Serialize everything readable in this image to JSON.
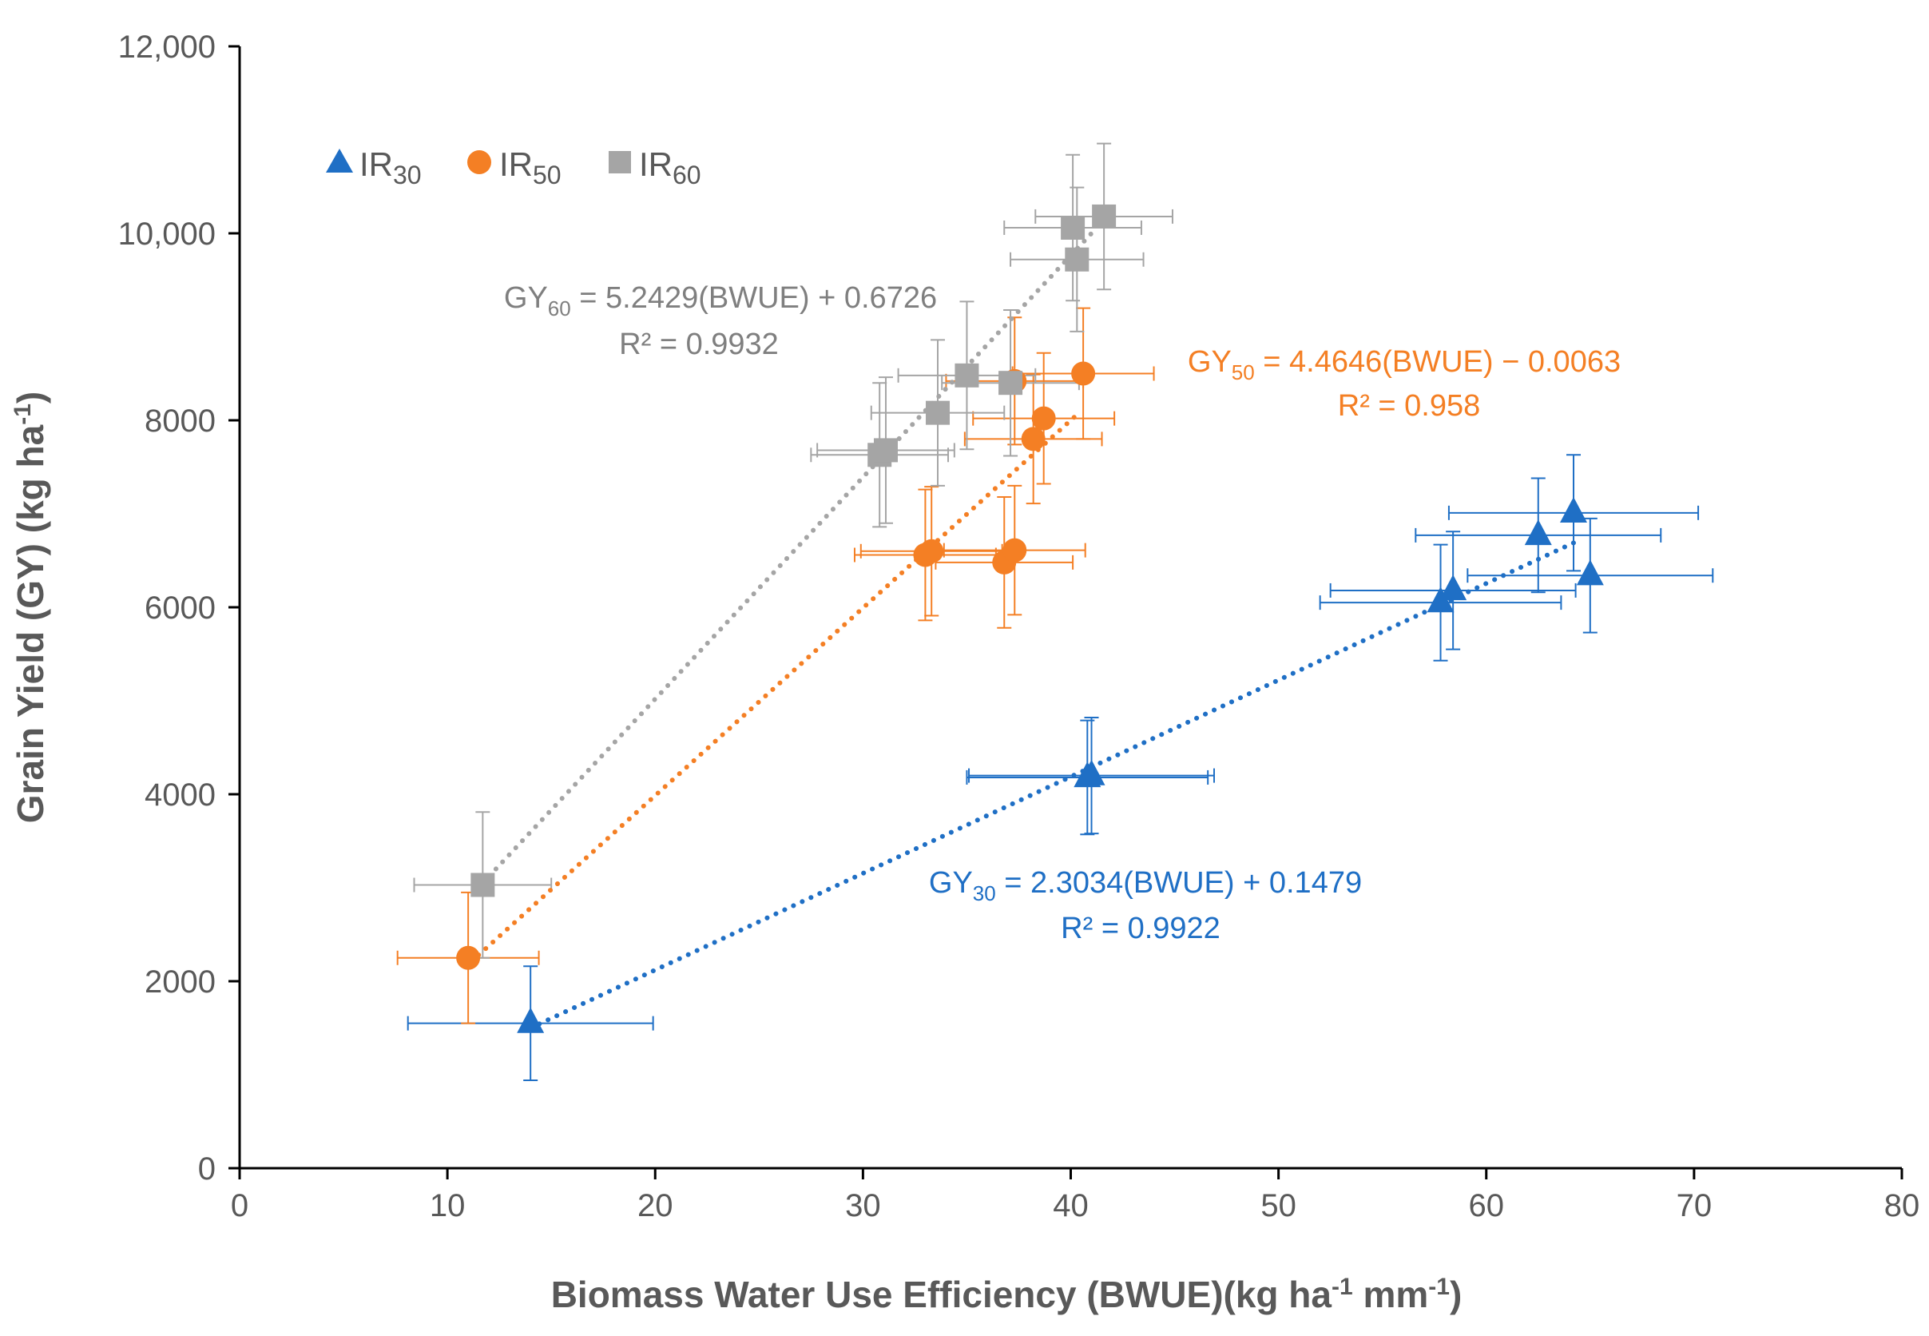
{
  "chart_data": {
    "type": "scatter",
    "title": "",
    "xlabel": "Biomass Water Use Efficiency (BWUE)(kg ha",
    "xlabel_sup1": "-1",
    "xlabel_mid": " mm",
    "xlabel_sup2": "-1",
    "xlabel_end": ")",
    "ylabel": "Grain Yield (GY) (kg ha",
    "ylabel_sup": "-1",
    "ylabel_end": ")",
    "xlim": [
      0,
      80
    ],
    "ylim": [
      0,
      12000
    ],
    "x_ticks": [
      0,
      10,
      20,
      30,
      40,
      50,
      60,
      70,
      80
    ],
    "x_tick_labels": [
      "0",
      "10",
      "20",
      "30",
      "40",
      "50",
      "60",
      "70",
      "80"
    ],
    "y_ticks": [
      0,
      2000,
      4000,
      6000,
      8000,
      10000,
      12000
    ],
    "y_tick_labels": [
      "0",
      "2000",
      "4000",
      "6000",
      "8000",
      "10,000",
      "12,000"
    ],
    "grid": false,
    "legend_position": "top-left",
    "series": [
      {
        "name": "IR",
        "sub": "30",
        "marker": "triangle",
        "color": "#1F6FC5",
        "points": [
          {
            "x": 14.0,
            "y": 1550,
            "xerr": 5.9,
            "yerr": 610
          },
          {
            "x": 40.8,
            "y": 4180,
            "xerr": 5.8,
            "yerr": 610
          },
          {
            "x": 41.0,
            "y": 4200,
            "xerr": 5.9,
            "yerr": 620
          },
          {
            "x": 57.8,
            "y": 6050,
            "xerr": 5.8,
            "yerr": 620
          },
          {
            "x": 58.4,
            "y": 6180,
            "xerr": 5.9,
            "yerr": 630
          },
          {
            "x": 62.5,
            "y": 6770,
            "xerr": 5.9,
            "yerr": 610
          },
          {
            "x": 64.2,
            "y": 7010,
            "xerr": 6.0,
            "yerr": 620
          },
          {
            "x": 65.0,
            "y": 6340,
            "xerr": 5.9,
            "yerr": 610
          }
        ],
        "trendline": {
          "x": [
            14.0,
            64.5
          ],
          "y": [
            1500,
            6720
          ]
        },
        "equation": {
          "prefix": "GY",
          "sub": "30",
          "text": " = 2.3034(BWUE) + 0.1479",
          "r2": "R² = 0.9922"
        }
      },
      {
        "name": "IR",
        "sub": "50",
        "marker": "circle",
        "color": "#F47F24",
        "points": [
          {
            "x": 11.0,
            "y": 2250,
            "xerr": 3.4,
            "yerr": 700
          },
          {
            "x": 33.0,
            "y": 6560,
            "xerr": 3.4,
            "yerr": 700
          },
          {
            "x": 33.3,
            "y": 6600,
            "xerr": 3.4,
            "yerr": 690
          },
          {
            "x": 36.8,
            "y": 6480,
            "xerr": 3.3,
            "yerr": 700
          },
          {
            "x": 37.3,
            "y": 6610,
            "xerr": 3.4,
            "yerr": 690
          },
          {
            "x": 38.2,
            "y": 7800,
            "xerr": 3.3,
            "yerr": 690
          },
          {
            "x": 38.7,
            "y": 8020,
            "xerr": 3.4,
            "yerr": 700
          },
          {
            "x": 37.3,
            "y": 8420,
            "xerr": 3.3,
            "yerr": 680
          },
          {
            "x": 40.6,
            "y": 8500,
            "xerr": 3.4,
            "yerr": 700
          }
        ],
        "trendline": {
          "x": [
            11.5,
            40.5
          ],
          "y": [
            2280,
            8100
          ]
        },
        "equation": {
          "prefix": "GY",
          "sub": "50",
          "text": " = 4.4646(BWUE) − 0.0063",
          "r2": "R² = 0.958"
        }
      },
      {
        "name": "IR",
        "sub": "60",
        "marker": "square",
        "color": "#A5A5A5",
        "points": [
          {
            "x": 11.7,
            "y": 3030,
            "xerr": 3.3,
            "yerr": 780
          },
          {
            "x": 30.8,
            "y": 7630,
            "xerr": 3.3,
            "yerr": 770
          },
          {
            "x": 31.1,
            "y": 7680,
            "xerr": 3.3,
            "yerr": 780
          },
          {
            "x": 33.6,
            "y": 8080,
            "xerr": 3.2,
            "yerr": 780
          },
          {
            "x": 35.0,
            "y": 8480,
            "xerr": 3.3,
            "yerr": 790
          },
          {
            "x": 37.1,
            "y": 8400,
            "xerr": 3.3,
            "yerr": 780
          },
          {
            "x": 40.1,
            "y": 10060,
            "xerr": 3.3,
            "yerr": 780
          },
          {
            "x": 40.3,
            "y": 9720,
            "xerr": 3.2,
            "yerr": 770
          },
          {
            "x": 41.6,
            "y": 10180,
            "xerr": 3.3,
            "yerr": 780
          }
        ],
        "trendline": {
          "x": [
            11.7,
            41.0
          ],
          "y": [
            3050,
            10000
          ]
        },
        "equation": {
          "prefix": "GY",
          "sub": "60",
          "text": " = 5.2429(BWUE) + 0.6726",
          "r2": "R² = 0.9932"
        }
      }
    ]
  }
}
